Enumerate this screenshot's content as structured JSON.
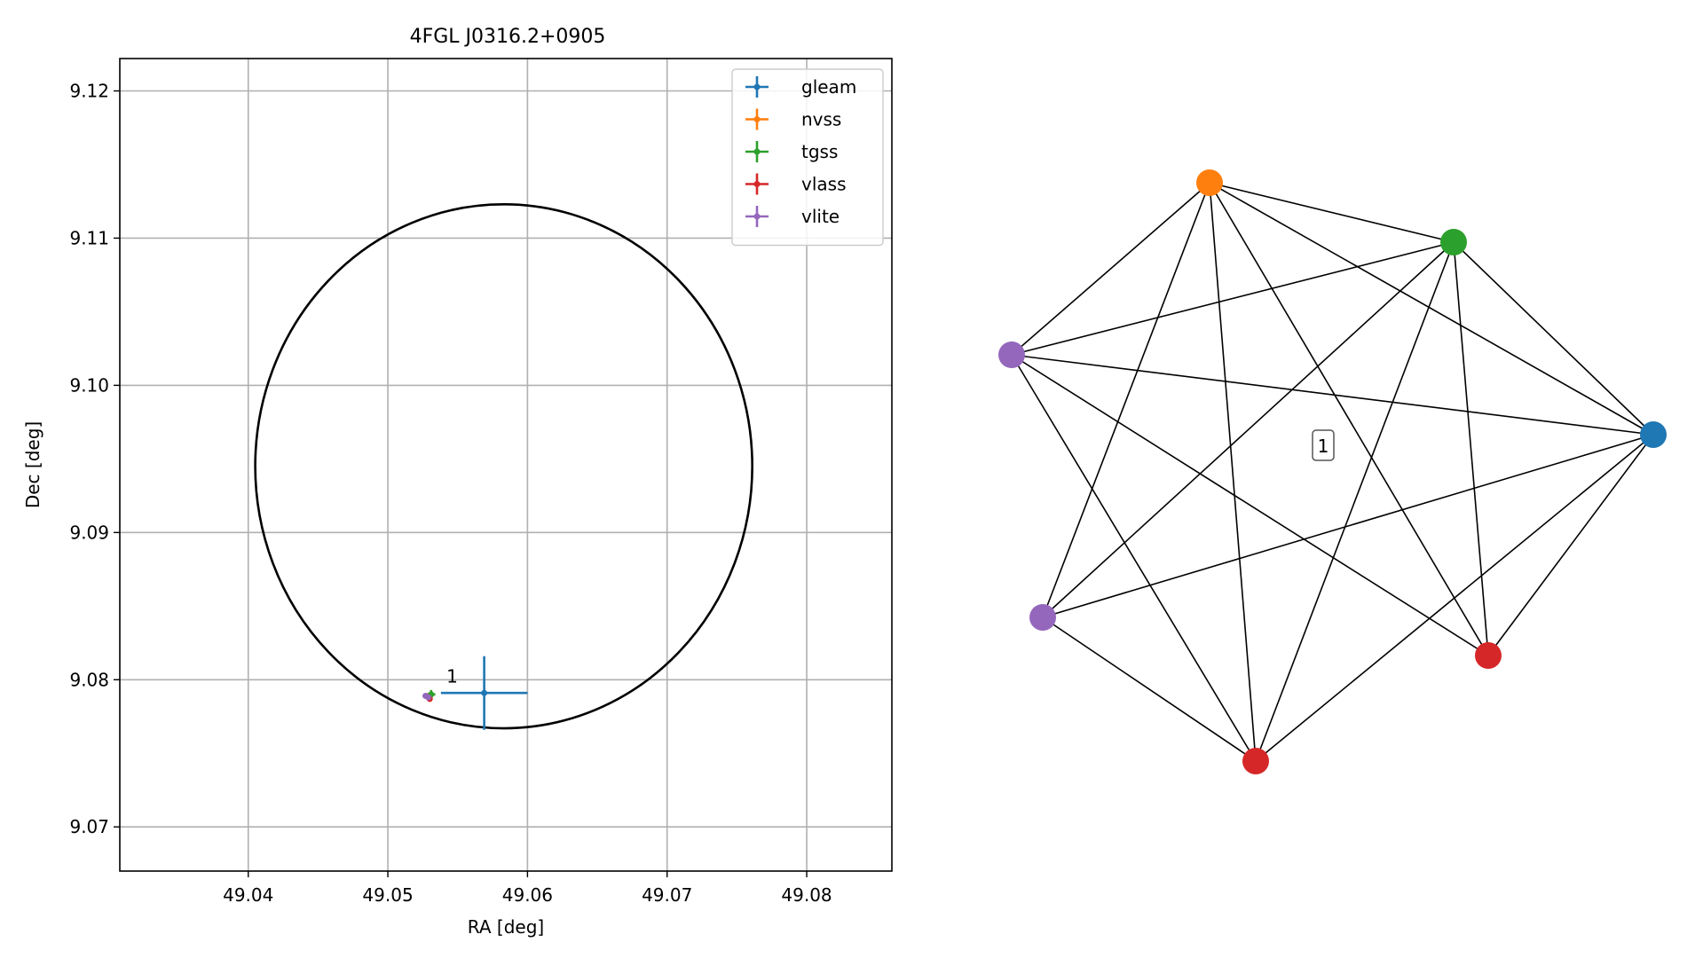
{
  "chart_data": [
    {
      "type": "scatter",
      "title": "4FGL J0316.2+0905",
      "xlabel": "RA [deg]",
      "ylabel": "Dec [deg]",
      "xlim": [
        49.0308,
        49.0861
      ],
      "ylim": [
        9.067,
        9.1222
      ],
      "xticks": [
        "49.04",
        "49.05",
        "49.06",
        "49.07",
        "49.08"
      ],
      "yticks": [
        "9.07",
        "9.08",
        "9.09",
        "9.10",
        "9.11",
        "9.12"
      ],
      "grid": true,
      "legend_position": "top-right",
      "error_ellipse": {
        "center": [
          49.0583,
          9.0945
        ],
        "semi_axis_ra": 0.0178,
        "semi_axis_dec": 0.0178,
        "color": "#000000"
      },
      "series": [
        {
          "name": "gleam",
          "color": "#1f77b4",
          "points": [
            {
              "x": 49.0569,
              "y": 9.0791,
              "xerr": 0.0031,
              "yerr": 0.0025
            }
          ]
        },
        {
          "name": "nvss",
          "color": "#ff7f0e",
          "points": [
            {
              "x": 49.0529,
              "y": 9.0789,
              "xerr": 0.0001,
              "yerr": 0.0001
            }
          ]
        },
        {
          "name": "tgss",
          "color": "#2ca02c",
          "points": [
            {
              "x": 49.0531,
              "y": 9.079,
              "xerr": 0.0003,
              "yerr": 0.0003
            }
          ]
        },
        {
          "name": "vlass",
          "color": "#d62728",
          "points": [
            {
              "x": 49.0529,
              "y": 9.0788,
              "xerr": 0.0001,
              "yerr": 0.0001
            },
            {
              "x": 49.053,
              "y": 9.0787,
              "xerr": 0.0001,
              "yerr": 0.0001
            }
          ]
        },
        {
          "name": "vlite",
          "color": "#9467bd",
          "points": [
            {
              "x": 49.0527,
              "y": 9.0789,
              "xerr": 0.0002,
              "yerr": 0.0001
            },
            {
              "x": 49.0529,
              "y": 9.0788,
              "xerr": 0.0002,
              "yerr": 0.0001
            }
          ]
        }
      ],
      "annotations": [
        {
          "text": "1",
          "x": 49.0542,
          "y": 9.0798
        }
      ]
    },
    {
      "type": "network",
      "nodes": [
        {
          "color": "#ff7f0e"
        },
        {
          "color": "#2ca02c"
        },
        {
          "color": "#9467bd"
        },
        {
          "color": "#1f77b4"
        },
        {
          "color": "#9467bd"
        },
        {
          "color": "#d62728"
        },
        {
          "color": "#d62728"
        }
      ],
      "edges": [
        [
          0,
          1
        ],
        [
          0,
          2
        ],
        [
          0,
          3
        ],
        [
          0,
          4
        ],
        [
          0,
          5
        ],
        [
          0,
          6
        ],
        [
          1,
          2
        ],
        [
          1,
          3
        ],
        [
          1,
          4
        ],
        [
          1,
          5
        ],
        [
          1,
          6
        ],
        [
          2,
          3
        ],
        [
          2,
          5
        ],
        [
          2,
          6
        ],
        [
          3,
          4
        ],
        [
          3,
          5
        ],
        [
          3,
          6
        ],
        [
          4,
          6
        ]
      ],
      "cluster_label": "1"
    }
  ]
}
